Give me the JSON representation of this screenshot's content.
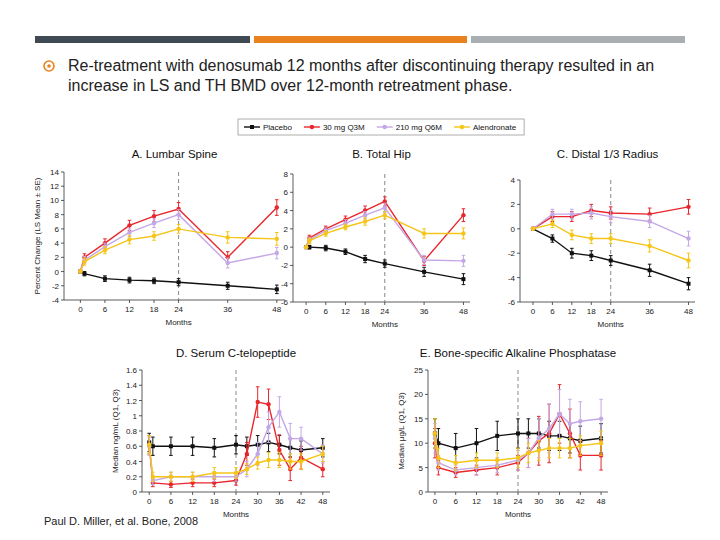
{
  "slide": {
    "bullet": "Re-treatment with denosumab 12 months after discontinuing therapy resulted in an increase in LS and TH BMD over 12-month retreatment phase.",
    "citation": "Paul D. Miller, et al. Bone, 2008"
  },
  "chart_data": [
    {
      "type": "line",
      "title": "A. Lumbar Spine",
      "x_label": "Months",
      "y_label": "Percent Change (LS Mean ± SE)",
      "legend": "top",
      "x": [
        0,
        1,
        6,
        12,
        18,
        24,
        36,
        48
      ],
      "xlim": [
        -4,
        50
      ],
      "xticks": [
        0,
        6,
        12,
        18,
        24,
        36,
        48
      ],
      "ylim": [
        -4,
        14
      ],
      "yticks": [
        -4,
        -2,
        0,
        2,
        4,
        6,
        8,
        10,
        12,
        14
      ],
      "reference_lines": [
        {
          "x": 24,
          "line_style": "dashed"
        }
      ],
      "series": [
        {
          "name": "Placebo",
          "color": "#111111",
          "marker": "square",
          "values": [
            0,
            -0.3,
            -1,
            -1.2,
            -1.3,
            -1.5,
            -2,
            -2.5
          ],
          "errors": [
            0,
            0.3,
            0.4,
            0.4,
            0.4,
            0.5,
            0.5,
            0.6
          ]
        },
        {
          "name": "30 mg Q3M",
          "color": "#e8262b",
          "marker": "circle",
          "values": [
            0,
            2,
            4,
            6.5,
            7.8,
            8.8,
            2,
            9
          ],
          "errors": [
            0,
            0.5,
            0.6,
            0.7,
            0.8,
            0.9,
            0.8,
            1.1
          ]
        },
        {
          "name": "210 mg Q6M",
          "color": "#c4a8e6",
          "marker": "circle",
          "values": [
            0,
            1.6,
            3.5,
            5.5,
            6.8,
            8,
            1.2,
            2.6
          ],
          "errors": [
            0,
            0.5,
            0.5,
            0.6,
            0.6,
            0.7,
            0.7,
            0.8
          ]
        },
        {
          "name": "Alendronate",
          "color": "#f5c518",
          "marker": "circle",
          "values": [
            0,
            1.4,
            3,
            4.5,
            5,
            6,
            4.8,
            4.6
          ],
          "errors": [
            0,
            0.5,
            0.5,
            0.6,
            0.6,
            0.6,
            0.8,
            0.9
          ]
        }
      ]
    },
    {
      "type": "line",
      "title": "B. Total Hip",
      "x_label": "Months",
      "x": [
        0,
        1,
        6,
        12,
        18,
        24,
        36,
        48
      ],
      "xlim": [
        -4,
        50
      ],
      "xticks": [
        0,
        6,
        12,
        18,
        24,
        36,
        48
      ],
      "ylim": [
        -6,
        8
      ],
      "yticks": [
        -6,
        -4,
        -2,
        0,
        2,
        4,
        6,
        8
      ],
      "reference_lines": [
        {
          "x": 24,
          "line_style": "dashed"
        }
      ],
      "series": [
        {
          "name": "Placebo",
          "color": "#111111",
          "marker": "square",
          "values": [
            0,
            0,
            -0.1,
            -0.5,
            -1.3,
            -1.8,
            -2.7,
            -3.5
          ],
          "errors": [
            0,
            0.2,
            0.3,
            0.3,
            0.4,
            0.4,
            0.5,
            0.6
          ]
        },
        {
          "name": "30 mg Q3M",
          "color": "#e8262b",
          "marker": "circle",
          "values": [
            0,
            1,
            2,
            3,
            4,
            5,
            -1.5,
            3.5
          ],
          "errors": [
            0,
            0.3,
            0.3,
            0.4,
            0.5,
            0.5,
            0.5,
            0.7
          ]
        },
        {
          "name": "210 mg Q6M",
          "color": "#c4a8e6",
          "marker": "circle",
          "values": [
            0,
            0.8,
            1.8,
            2.6,
            3.5,
            4.3,
            -1.4,
            -1.5
          ],
          "errors": [
            0,
            0.3,
            0.3,
            0.4,
            0.4,
            0.5,
            0.5,
            0.6
          ]
        },
        {
          "name": "Alendronate",
          "color": "#f5c518",
          "marker": "circle",
          "values": [
            0,
            0.7,
            1.5,
            2.2,
            2.8,
            3.5,
            1.5,
            1.5
          ],
          "errors": [
            0,
            0.3,
            0.3,
            0.3,
            0.4,
            0.4,
            0.5,
            0.6
          ]
        }
      ]
    },
    {
      "type": "line",
      "title": "C. Distal 1/3 Radius",
      "x_label": "Months",
      "x": [
        0,
        6,
        12,
        18,
        24,
        36,
        48
      ],
      "xlim": [
        -4,
        50
      ],
      "xticks": [
        0,
        6,
        12,
        18,
        24,
        36,
        48
      ],
      "ylim": [
        -6,
        4
      ],
      "yticks": [
        -6,
        -4,
        -2,
        0,
        2,
        4
      ],
      "reference_lines": [
        {
          "x": 24,
          "line_style": "dashed"
        }
      ],
      "series": [
        {
          "name": "Placebo",
          "color": "#111111",
          "marker": "square",
          "values": [
            0,
            -0.8,
            -2,
            -2.2,
            -2.6,
            -3.4,
            -4.5
          ],
          "errors": [
            0,
            0.3,
            0.4,
            0.4,
            0.4,
            0.5,
            0.5
          ]
        },
        {
          "name": "30 mg Q3M",
          "color": "#e8262b",
          "marker": "circle",
          "values": [
            0,
            1,
            1,
            1.5,
            1.3,
            1.2,
            1.8
          ],
          "errors": [
            0,
            0.4,
            0.4,
            0.5,
            0.5,
            0.5,
            0.6
          ]
        },
        {
          "name": "210 mg Q6M",
          "color": "#c4a8e6",
          "marker": "circle",
          "values": [
            0,
            1.2,
            1.2,
            1.3,
            1,
            0.6,
            -0.8
          ],
          "errors": [
            0,
            0.4,
            0.4,
            0.5,
            0.5,
            0.5,
            0.6
          ]
        },
        {
          "name": "Alendronate",
          "color": "#f5c518",
          "marker": "circle",
          "values": [
            0,
            0.4,
            -0.5,
            -0.8,
            -0.8,
            -1.4,
            -2.6
          ],
          "errors": [
            0,
            0.3,
            0.4,
            0.4,
            0.4,
            0.5,
            0.6
          ]
        }
      ]
    },
    {
      "type": "line",
      "title": "D. Serum C-telopeptide",
      "x_label": "Months",
      "y_label": "Median ng/mL (Q1, Q3)",
      "x": [
        0,
        1,
        6,
        12,
        18,
        24,
        27,
        30,
        33,
        36,
        39,
        42,
        48
      ],
      "xlim": [
        -2,
        50
      ],
      "xticks": [
        0,
        6,
        12,
        18,
        24,
        30,
        36,
        42,
        48
      ],
      "ylim": [
        0,
        1.6
      ],
      "yticks": [
        0,
        0.2,
        0.4,
        0.6,
        0.8,
        1,
        1.2,
        1.4,
        1.6
      ],
      "reference_lines": [
        {
          "x": 24,
          "line_style": "dashed"
        }
      ],
      "series": [
        {
          "name": "Placebo",
          "color": "#111111",
          "marker": "square",
          "values": [
            0.65,
            0.6,
            0.6,
            0.6,
            0.58,
            0.62,
            0.6,
            0.62,
            0.65,
            0.62,
            0.58,
            0.55,
            0.58
          ],
          "errors": [
            0.12,
            0.12,
            0.12,
            0.12,
            0.12,
            0.12,
            0.12,
            0.12,
            0.12,
            0.12,
            0.12,
            0.12,
            0.12
          ]
        },
        {
          "name": "30 mg Q3M",
          "color": "#e8262b",
          "marker": "circle",
          "values": [
            0.62,
            0.12,
            0.1,
            0.12,
            0.12,
            0.15,
            0.5,
            1.18,
            1.15,
            0.55,
            0.3,
            0.45,
            0.3
          ],
          "errors": [
            0.12,
            0.05,
            0.04,
            0.05,
            0.05,
            0.06,
            0.15,
            0.2,
            0.2,
            0.2,
            0.15,
            0.15,
            0.1
          ]
        },
        {
          "name": "210 mg Q6M",
          "color": "#c4a8e6",
          "marker": "circle",
          "values": [
            0.6,
            0.15,
            0.2,
            0.2,
            0.2,
            0.2,
            0.3,
            0.5,
            0.85,
            1.05,
            0.7,
            0.7,
            0.5
          ],
          "errors": [
            0.12,
            0.05,
            0.06,
            0.06,
            0.06,
            0.06,
            0.1,
            0.15,
            0.2,
            0.2,
            0.2,
            0.15,
            0.12
          ]
        },
        {
          "name": "Alendronate",
          "color": "#f5c518",
          "marker": "circle",
          "values": [
            0.62,
            0.2,
            0.2,
            0.2,
            0.25,
            0.25,
            0.3,
            0.38,
            0.42,
            0.42,
            0.4,
            0.4,
            0.5
          ],
          "errors": [
            0.12,
            0.06,
            0.06,
            0.06,
            0.07,
            0.07,
            0.07,
            0.08,
            0.1,
            0.1,
            0.1,
            0.1,
            0.1
          ]
        }
      ]
    },
    {
      "type": "line",
      "title": "E. Bone-specific Alkaline Phosphatase",
      "x_label": "Months",
      "y_label": "Median μg/L (Q1, Q3)",
      "x": [
        0,
        1,
        6,
        12,
        18,
        24,
        27,
        30,
        33,
        36,
        39,
        42,
        48
      ],
      "xlim": [
        -2,
        50
      ],
      "xticks": [
        0,
        6,
        12,
        18,
        24,
        30,
        36,
        42,
        48
      ],
      "ylim": [
        0,
        25
      ],
      "yticks": [
        0,
        5,
        10,
        15,
        20,
        25
      ],
      "reference_lines": [
        {
          "x": 24,
          "line_style": "dashed"
        }
      ],
      "series": [
        {
          "name": "Placebo",
          "color": "#111111",
          "marker": "square",
          "values": [
            12,
            10,
            9,
            10,
            11.5,
            12,
            12,
            12,
            11.5,
            11.5,
            11,
            10.5,
            11
          ],
          "errors": [
            3,
            3,
            3,
            3,
            3,
            3,
            3,
            3,
            3,
            3,
            3,
            3,
            3
          ]
        },
        {
          "name": "30 mg Q3M",
          "color": "#e8262b",
          "marker": "circle",
          "values": [
            10,
            5,
            4,
            4.5,
            5,
            6,
            8,
            10.5,
            12,
            16,
            12,
            7.5,
            7.5
          ],
          "errors": [
            3,
            1.5,
            1,
            1,
            1.5,
            1.5,
            3,
            5,
            6,
            6,
            5,
            3,
            3
          ]
        },
        {
          "name": "210 mg Q6M",
          "color": "#c4a8e6",
          "marker": "circle",
          "values": [
            11,
            6,
            4.5,
            5,
            5.5,
            6.5,
            8,
            11,
            13,
            16,
            14,
            14.5,
            15
          ],
          "errors": [
            3,
            1.5,
            1,
            1.5,
            1.5,
            2,
            3,
            4,
            5,
            5,
            5,
            4,
            4
          ]
        },
        {
          "name": "Alendronate",
          "color": "#f5c518",
          "marker": "circle",
          "values": [
            12,
            7,
            6,
            6.5,
            6.5,
            7,
            8,
            8.5,
            9,
            9,
            9,
            9.5,
            10
          ],
          "errors": [
            3,
            2,
            1.5,
            1.5,
            1.5,
            2,
            2,
            2,
            2,
            2,
            2,
            2,
            2.5
          ]
        }
      ]
    }
  ]
}
